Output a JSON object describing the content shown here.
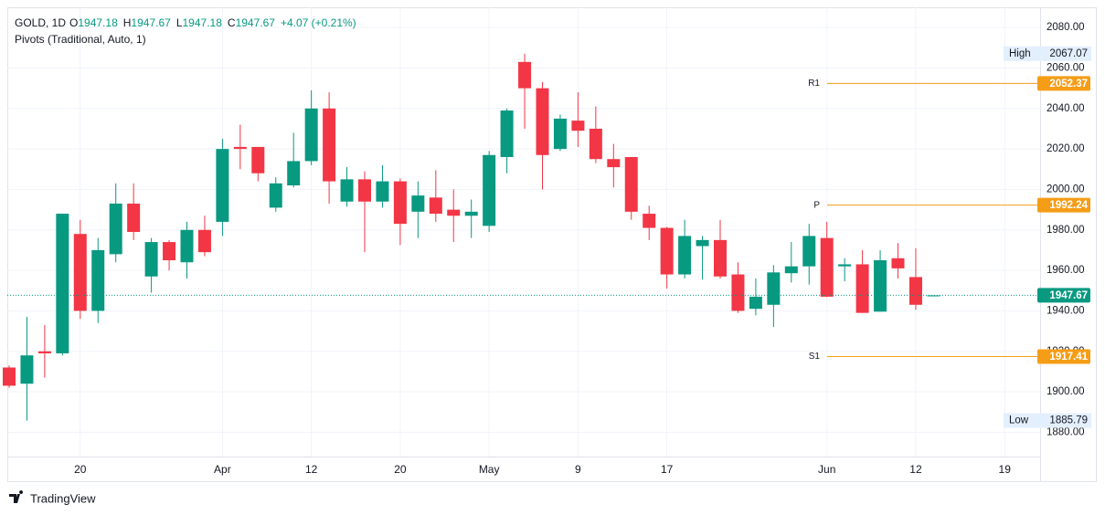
{
  "chart_data": {
    "type": "candlestick",
    "header": {
      "symbol": "GOLD, 1D",
      "fields": [
        {
          "label": "O",
          "value": "1947.18"
        },
        {
          "label": "H",
          "value": "1947.67"
        },
        {
          "label": "L",
          "value": "1947.18"
        },
        {
          "label": "C",
          "value": "1947.67"
        }
      ],
      "change": "+4.07 (+0.21%)",
      "indicator": "Pivots (Traditional, Auto, 1)"
    },
    "categories": [
      null,
      null,
      null,
      null,
      "20",
      null,
      null,
      null,
      null,
      null,
      null,
      null,
      "Apr",
      null,
      null,
      null,
      null,
      "12",
      null,
      null,
      null,
      null,
      "20",
      null,
      null,
      null,
      null,
      "May",
      null,
      null,
      null,
      null,
      "9",
      null,
      null,
      null,
      null,
      "17",
      null,
      null,
      null,
      null,
      null,
      null,
      null,
      null,
      "Jun",
      null,
      null,
      null,
      null,
      "12",
      null,
      null,
      null,
      null,
      "19"
    ],
    "open": [
      1912,
      1904,
      1920,
      1919,
      1978,
      1940,
      1968,
      1993,
      1957,
      1974,
      1964,
      1980,
      1984,
      2021,
      2021,
      1991,
      2002,
      2014,
      2040,
      1994,
      2005,
      1994,
      2004,
      1989,
      1996,
      1990,
      1987,
      1982,
      2016,
      2063,
      2050,
      2020,
      2034,
      2030,
      2015,
      2016,
      1988,
      1981,
      1958,
      1972,
      1975,
      1958,
      1941,
      1943,
      1958.6,
      1962,
      1976,
      1962,
      1963,
      1939.6,
      1966,
      1956.7,
      1947.18,
      null,
      null,
      null,
      null
    ],
    "high": [
      1913,
      1937,
      1933,
      1988,
      1985,
      1976,
      2003,
      2003,
      1976,
      1975,
      1984,
      1987,
      2025,
      2032,
      2021,
      2006,
      2028,
      2049,
      2048,
      2011,
      2009,
      2012,
      2005.5,
      2004,
      2009.5,
      2000,
      1995,
      2019,
      2040,
      2067.07,
      2053,
      2037,
      2048,
      2041,
      2022.5,
      2016,
      1992,
      1981.5,
      1985,
      1977,
      1985,
      1964,
      1956,
      1962.6,
      1974,
      1983,
      1984,
      1966,
      1970,
      1970,
      1973.5,
      1971,
      1947.67,
      null,
      null,
      null,
      null
    ],
    "low": [
      1902,
      1885.79,
      1907,
      1918,
      1936,
      1934,
      1964,
      1975,
      1949,
      1960,
      1956,
      1967,
      1977,
      2010,
      2004,
      1989,
      2001,
      2012,
      1993,
      1991.5,
      1969,
      1991,
      1972.5,
      1976,
      1984,
      1974,
      1976,
      1979,
      2008,
      2030,
      2000,
      2019,
      2021,
      2013,
      2001,
      1985,
      1975,
      1951,
      1956,
      1955.5,
      1956,
      1939,
      1937.8,
      1932,
      1954,
      1953,
      1946.8,
      1954.6,
      1939,
      1939.6,
      1956,
      1940.5,
      1947.18,
      null,
      null,
      null,
      null
    ],
    "close": [
      1903,
      1918,
      1919,
      1988,
      1940,
      1970,
      1993,
      1979,
      1974,
      1965,
      1980,
      1969,
      2020,
      2020,
      2008,
      2003,
      2014,
      2040,
      2004,
      2005,
      1994,
      2004,
      1983,
      1997,
      1988,
      1987,
      1989,
      2017,
      2039,
      2050,
      2017,
      2035,
      2029,
      2015,
      2011,
      1989,
      1981,
      1958,
      1977,
      1975,
      1957,
      1940,
      1947,
      1959,
      1962,
      1977,
      1947,
      1963,
      1939,
      1965,
      1961,
      1943,
      1947.67,
      null,
      null,
      null,
      null
    ],
    "up_color": "#089981",
    "down_color": "#f23645",
    "ylim": [
      1868,
      2090
    ],
    "yticks": [
      {
        "value": 1880,
        "label": "1880.00"
      },
      {
        "value": 1900,
        "label": "1900.00"
      },
      {
        "value": 1920,
        "label": "1920.00"
      },
      {
        "value": 1940,
        "label": "1940.00"
      },
      {
        "value": 1960,
        "label": "1960.00"
      },
      {
        "value": 1980,
        "label": "1980.00"
      },
      {
        "value": 2000,
        "label": "2000.00"
      },
      {
        "value": 2020,
        "label": "2020.00"
      },
      {
        "value": 2040,
        "label": "2040.00"
      },
      {
        "value": 2060,
        "label": "2060.00"
      },
      {
        "value": 2080,
        "label": "2080.00"
      }
    ],
    "grid": true,
    "pivots": [
      {
        "name": "R1",
        "value": 2052.37,
        "color": "#f59d17"
      },
      {
        "name": "P",
        "value": 1992.24,
        "color": "#f59d17"
      },
      {
        "name": "S1",
        "value": 1917.41,
        "color": "#f59d17"
      }
    ],
    "high_marker": {
      "label": "High",
      "value": 2067.07
    },
    "low_marker": {
      "label": "Low",
      "value": 1885.79
    },
    "last_price": 1947.67,
    "brand": "TradingView"
  }
}
